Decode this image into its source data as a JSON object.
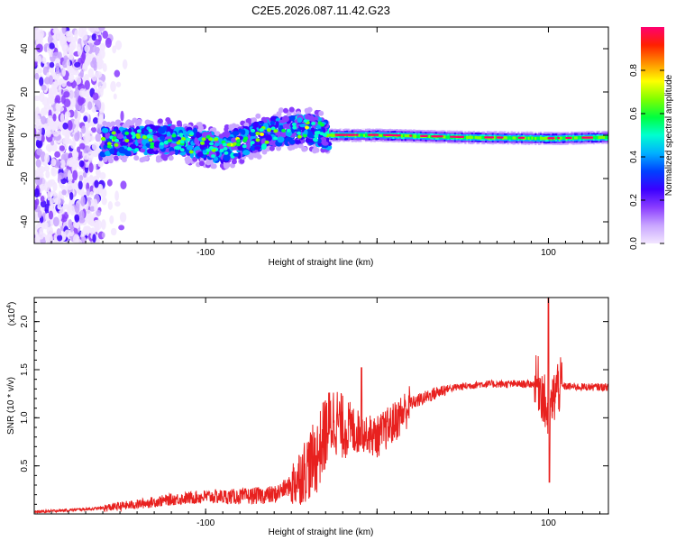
{
  "figure": {
    "title": "C2E5.2026.087.11.42.G23"
  },
  "chart_data": [
    {
      "type": "heatmap",
      "xlabel": "Height of straight line (km)",
      "ylabel": "Frequency (Hz)",
      "xlim": [
        -200,
        135
      ],
      "ylim": [
        -50,
        50
      ],
      "xticks": [
        -100,
        0,
        100
      ],
      "xtick_labels": [
        "-100",
        "",
        "100"
      ],
      "yticks": [
        -40,
        -20,
        0,
        20,
        40
      ],
      "ytick_labels": [
        "-40",
        "-20",
        "0",
        "20",
        "40"
      ],
      "colorbar": {
        "label": "Normalized spectral amplitude",
        "range": [
          0,
          1
        ],
        "ticks": [
          0.0,
          0.2,
          0.4,
          0.6,
          0.8
        ],
        "tick_labels": [
          "0.0",
          "0.2",
          "0.4",
          "0.6",
          "0.8"
        ],
        "colors": [
          "#f2e6ff",
          "#c9a6ff",
          "#8a3cff",
          "#3a00ff",
          "#0040ff",
          "#00b0ff",
          "#00ffd0",
          "#00ff40",
          "#80ff00",
          "#ffff00",
          "#ff9000",
          "#ff2000",
          "#ff0070"
        ]
      },
      "regions": [
        {
          "name": "scatter",
          "x": [
            -200,
            -160
          ],
          "freq_center": 0,
          "freq_spread": 50,
          "amplitude": 0.15
        },
        {
          "name": "turbulent-band",
          "x": [
            -160,
            -28
          ],
          "freq_center": 0,
          "freq_spread": 6,
          "amplitude": 0.35
        },
        {
          "name": "stable-band",
          "x": [
            -28,
            135
          ],
          "freq_center": -0.5,
          "freq_spread": 1.5,
          "amplitude": 0.85
        }
      ],
      "series": [
        {
          "name": "band-center",
          "x": [
            -160,
            -120,
            -90,
            -60,
            -40,
            -28,
            0,
            50,
            100,
            135
          ],
          "y": [
            -3,
            -2,
            -6,
            2,
            3,
            0,
            0,
            -1,
            -1.5,
            -1
          ]
        }
      ]
    },
    {
      "type": "line",
      "xlabel": "Height of straight line (km)",
      "ylabel": "SNR (10 * v/v)",
      "axis_multiplier": "(x10",
      "axis_multiplier_exp": "4",
      "axis_multiplier_close": ")",
      "xlim": [
        -200,
        135
      ],
      "ylim": [
        0,
        2.25
      ],
      "xticks": [
        -100,
        0,
        100
      ],
      "xtick_labels": [
        "-100",
        "",
        "100"
      ],
      "yticks": [
        0.5,
        1.0,
        1.5,
        2.0
      ],
      "ytick_labels": [
        "0.5",
        "1.0",
        "1.5",
        "2.0"
      ],
      "color": "#e8211f",
      "series": [
        {
          "name": "SNR",
          "x": [
            -200,
            -180,
            -160,
            -140,
            -120,
            -100,
            -80,
            -60,
            -50,
            -40,
            -35,
            -30,
            -25,
            -20,
            -10,
            0,
            10,
            20,
            40,
            60,
            80,
            95,
            100,
            105,
            120,
            135
          ],
          "y": [
            0.02,
            0.04,
            0.06,
            0.1,
            0.15,
            0.18,
            0.18,
            0.2,
            0.3,
            0.5,
            0.6,
            0.85,
            1.0,
            0.9,
            0.85,
            0.8,
            0.95,
            1.15,
            1.3,
            1.35,
            1.35,
            1.35,
            1.0,
            1.33,
            1.32,
            1.32
          ]
        }
      ]
    }
  ]
}
